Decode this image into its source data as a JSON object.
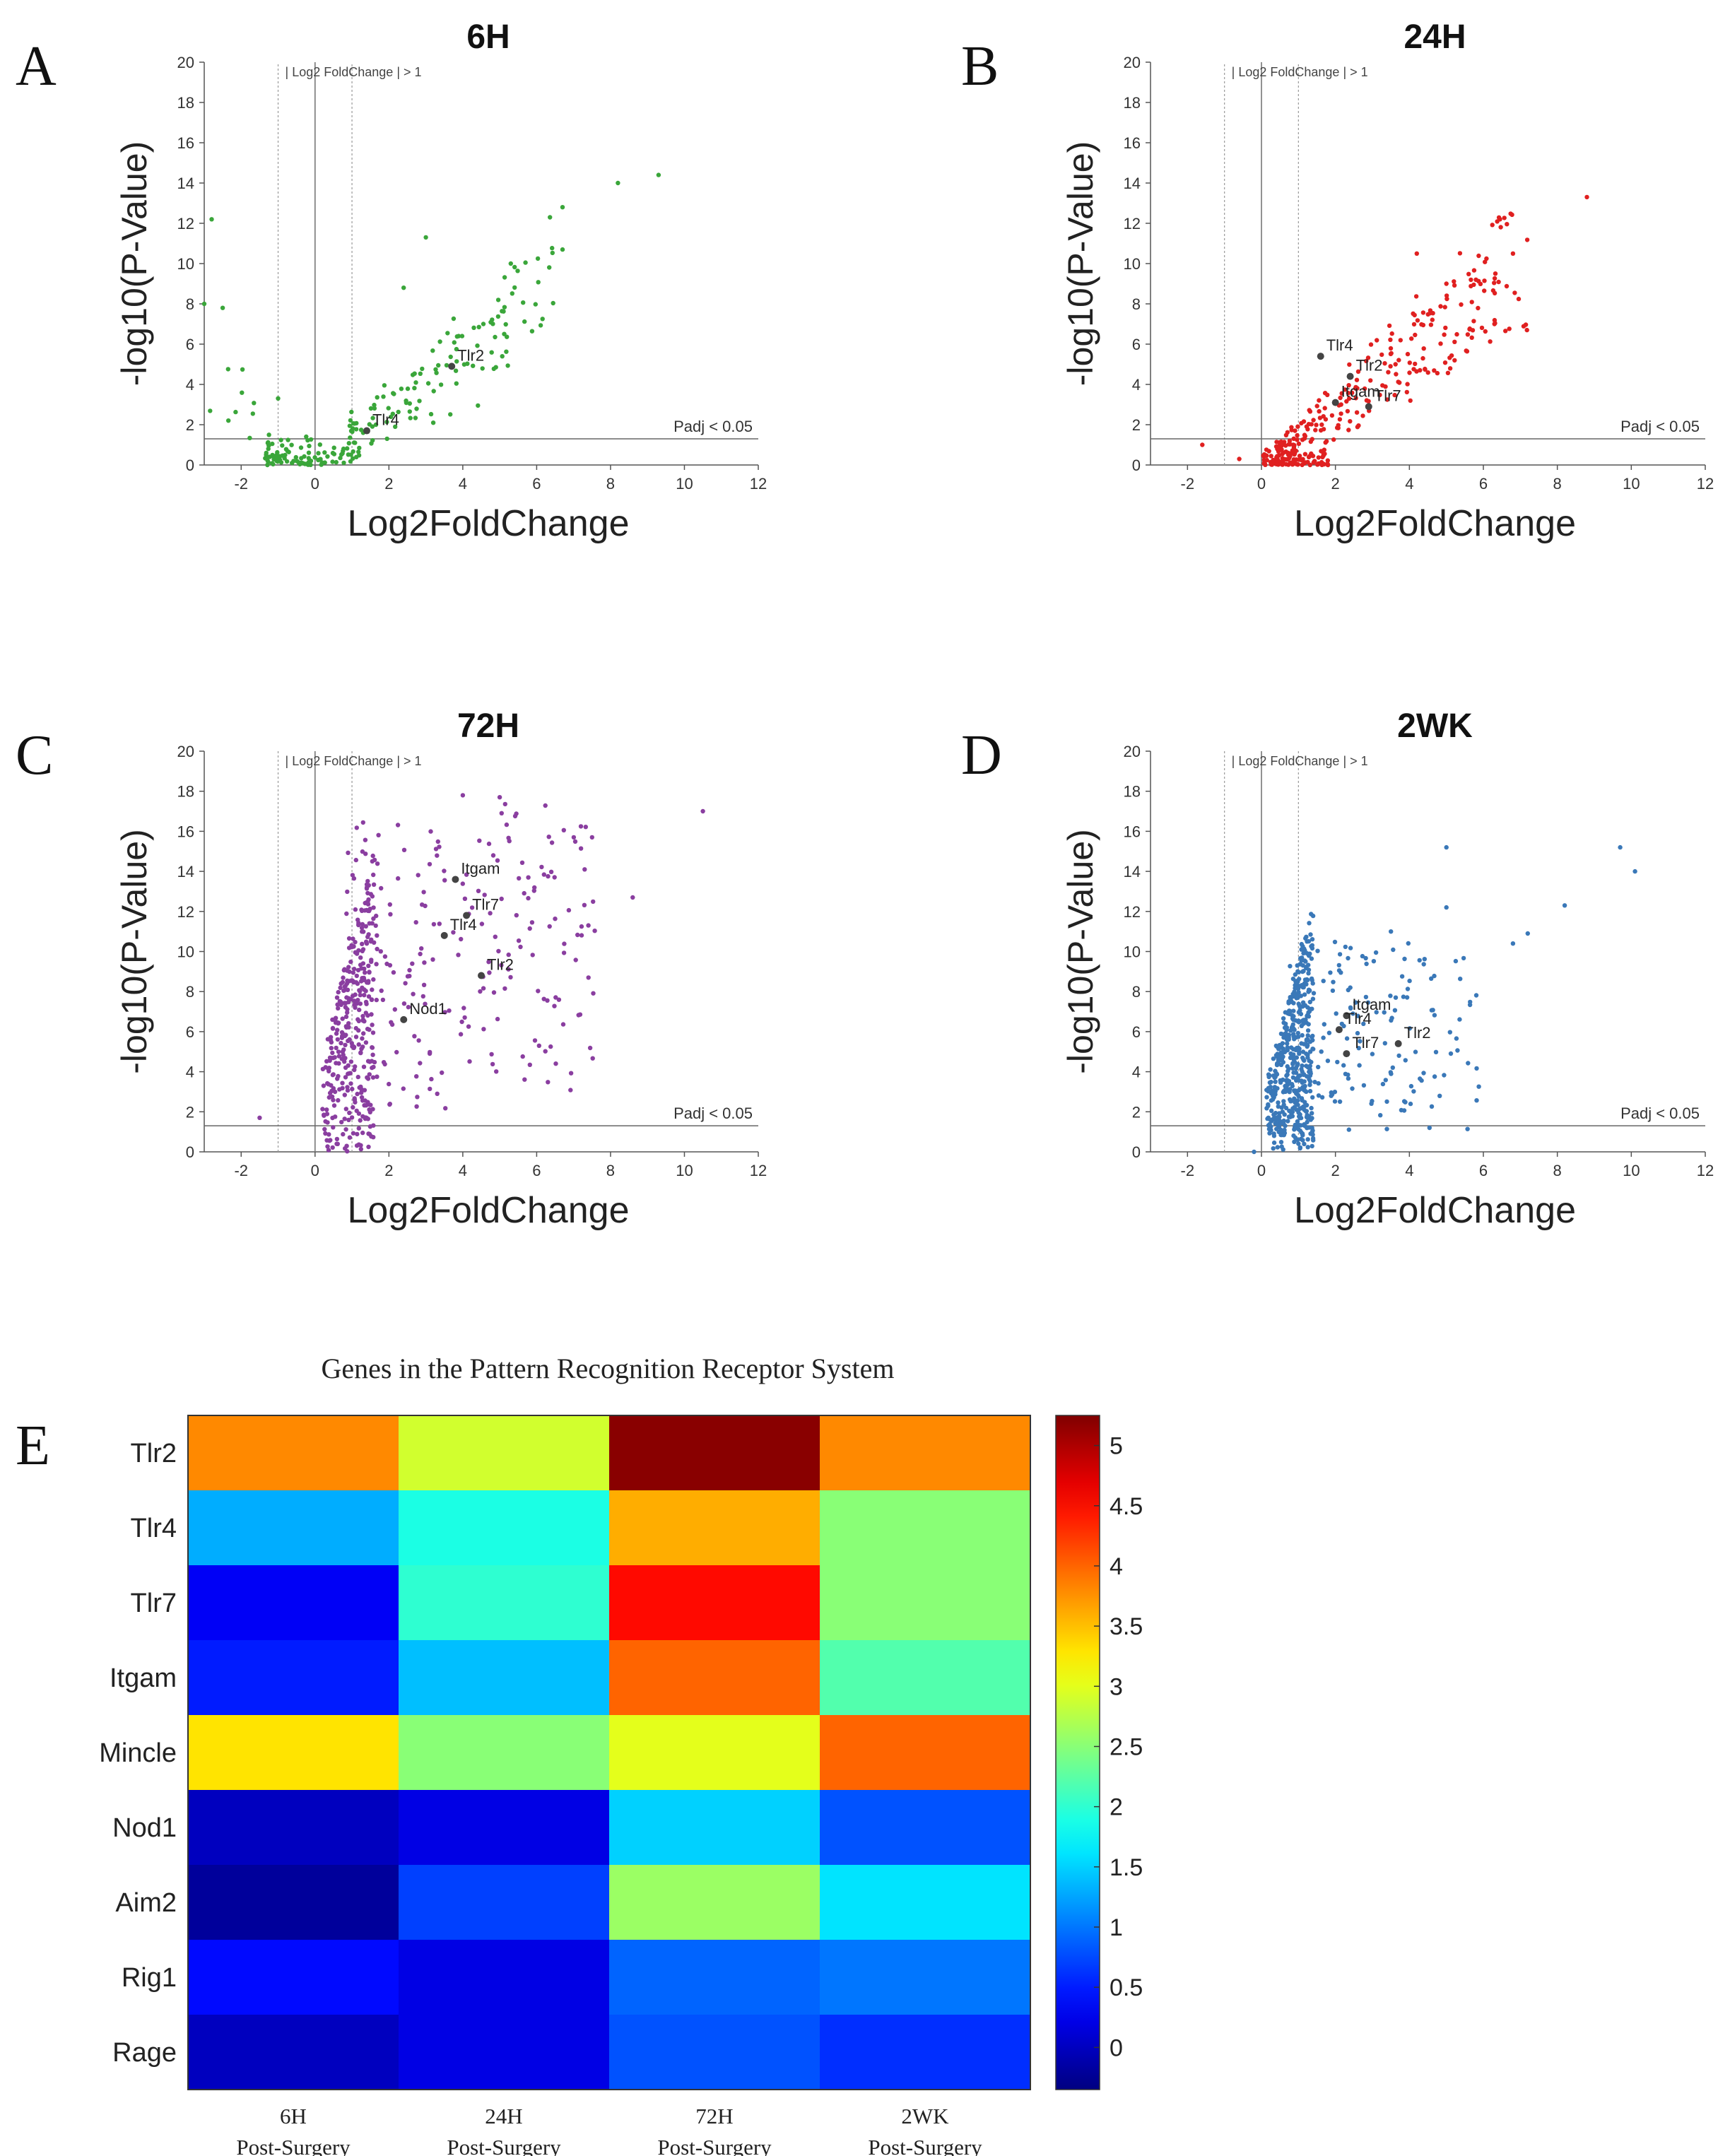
{
  "chart_data": [
    {
      "panel": "A",
      "type": "scatter",
      "title": "6H",
      "xlabel": "Log2FoldChange",
      "ylabel": "-log10(P-Value)",
      "xlim": [
        -3,
        12
      ],
      "ylim": [
        0,
        20
      ],
      "xticks": [
        -2,
        0,
        2,
        4,
        6,
        8,
        10,
        12
      ],
      "yticks": [
        0,
        2,
        4,
        6,
        8,
        10,
        12,
        14,
        16,
        18,
        20
      ],
      "color": "#3aa63a",
      "threshold_label_fc": "| Log2 FoldChange | > 1",
      "threshold_label_p": "Padj < 0.05",
      "padj_line": 1.3,
      "fc_lines": [
        -1,
        1
      ],
      "seed": 11,
      "highlights": [
        {
          "label": "Tlr2",
          "x": 3.7,
          "y": 4.9
        },
        {
          "label": "Tlr4",
          "x": 1.4,
          "y": 1.7
        }
      ],
      "anchors": [
        [
          9.3,
          14.4
        ],
        [
          8.2,
          14.0
        ],
        [
          6.7,
          12.8
        ],
        [
          6.7,
          10.7
        ],
        [
          -2.8,
          12.2
        ],
        [
          -3.0,
          8.0
        ],
        [
          -2.5,
          7.8
        ],
        [
          5.3,
          10.0
        ],
        [
          3.0,
          11.3
        ],
        [
          2.4,
          8.8
        ]
      ]
    },
    {
      "panel": "B",
      "type": "scatter",
      "title": "24H",
      "xlabel": "Log2FoldChange",
      "ylabel": "-log10(P-Value)",
      "xlim": [
        -3,
        12
      ],
      "ylim": [
        0,
        20
      ],
      "xticks": [
        -2,
        0,
        2,
        4,
        6,
        8,
        10,
        12
      ],
      "yticks": [
        0,
        2,
        4,
        6,
        8,
        10,
        12,
        14,
        16,
        18,
        20
      ],
      "color": "#e02020",
      "threshold_label_fc": "| Log2 FoldChange | > 1",
      "threshold_label_p": "Padj < 0.05",
      "padj_line": 1.3,
      "fc_lines": [
        -1,
        1
      ],
      "seed": 23,
      "highlights": [
        {
          "label": "Tlr4",
          "x": 1.6,
          "y": 5.4
        },
        {
          "label": "Tlr2",
          "x": 2.4,
          "y": 4.4
        },
        {
          "label": "Itgam",
          "x": 2.0,
          "y": 3.1
        },
        {
          "label": "Tlr7",
          "x": 2.9,
          "y": 2.9
        }
      ],
      "anchors": [
        [
          8.8,
          13.3
        ],
        [
          6.8,
          10.5
        ],
        [
          4.2,
          10.5
        ],
        [
          5.8,
          9.2
        ],
        [
          -1.6,
          1.0
        ],
        [
          -0.6,
          0.3
        ],
        [
          5.0,
          9.0
        ],
        [
          6.3,
          7.0
        ]
      ]
    },
    {
      "panel": "C",
      "type": "scatter",
      "title": "72H",
      "xlabel": "Log2FoldChange",
      "ylabel": "-log10(P-Value)",
      "xlim": [
        -3,
        12
      ],
      "ylim": [
        0,
        20
      ],
      "xticks": [
        -2,
        0,
        2,
        4,
        6,
        8,
        10,
        12
      ],
      "yticks": [
        0,
        2,
        4,
        6,
        8,
        10,
        12,
        14,
        16,
        18,
        20
      ],
      "color": "#8a3ea0",
      "threshold_label_fc": "| Log2 FoldChange | > 1",
      "threshold_label_p": "Padj < 0.05",
      "padj_line": 1.3,
      "fc_lines": [
        -1,
        1
      ],
      "seed": 37,
      "highlights": [
        {
          "label": "Itgam",
          "x": 3.8,
          "y": 13.6
        },
        {
          "label": "Tlr7",
          "x": 4.1,
          "y": 11.8
        },
        {
          "label": "Tlr4",
          "x": 3.5,
          "y": 10.8
        },
        {
          "label": "Tlr2",
          "x": 4.5,
          "y": 8.8
        },
        {
          "label": "Nod1",
          "x": 2.4,
          "y": 6.6
        }
      ],
      "anchors": [
        [
          10.5,
          17.0
        ],
        [
          7.5,
          15.7
        ],
        [
          7.3,
          14.1
        ],
        [
          8.6,
          12.7
        ],
        [
          7.4,
          11.3
        ],
        [
          -1.5,
          1.7
        ],
        [
          4.0,
          17.8
        ],
        [
          5.0,
          17.7
        ]
      ]
    },
    {
      "panel": "D",
      "type": "scatter",
      "title": "2WK",
      "xlabel": "Log2FoldChange",
      "ylabel": "-log10(P-Value)",
      "xlim": [
        -3,
        12
      ],
      "ylim": [
        0,
        20
      ],
      "xticks": [
        -2,
        0,
        2,
        4,
        6,
        8,
        10,
        12
      ],
      "yticks": [
        0,
        2,
        4,
        6,
        8,
        10,
        12,
        14,
        16,
        18,
        20
      ],
      "color": "#3a78b8",
      "threshold_label_fc": "| Log2 FoldChange | > 1",
      "threshold_label_p": "Padj < 0.05",
      "padj_line": 1.3,
      "fc_lines": [
        -1,
        1
      ],
      "seed": 53,
      "highlights": [
        {
          "label": "Itgam",
          "x": 2.3,
          "y": 6.8
        },
        {
          "label": "Tlr4",
          "x": 2.1,
          "y": 6.1
        },
        {
          "label": "Tlr7",
          "x": 2.3,
          "y": 4.9
        },
        {
          "label": "Tlr2",
          "x": 3.7,
          "y": 5.4
        }
      ],
      "anchors": [
        [
          9.7,
          15.2
        ],
        [
          10.1,
          14.0
        ],
        [
          5.0,
          15.2
        ],
        [
          8.2,
          12.3
        ],
        [
          5.0,
          12.2
        ],
        [
          7.2,
          10.9
        ],
        [
          3.5,
          11.0
        ],
        [
          6.8,
          10.4
        ],
        [
          -0.2,
          0.0
        ]
      ]
    },
    {
      "panel": "E",
      "type": "heatmap",
      "title": "Genes in the Pattern Recognition Receptor System",
      "rows": [
        "Tlr2",
        "Tlr4",
        "Tlr7",
        "Itgam",
        "Mincle",
        "Nod1",
        "Aim2",
        "Rig1",
        "Rage"
      ],
      "columns": [
        {
          "line1": "6H",
          "line2": "Post-Surgery"
        },
        {
          "line1": "24H",
          "line2": "Post-Surgery"
        },
        {
          "line1": "72H",
          "line2": "Post-Surgery"
        },
        {
          "line1": "2WK",
          "line2": "Post-Surgery"
        }
      ],
      "values": [
        [
          3.8,
          2.9,
          5.2,
          3.8
        ],
        [
          1.3,
          1.9,
          3.6,
          2.5
        ],
        [
          0.3,
          2.0,
          4.5,
          2.5
        ],
        [
          0.5,
          1.4,
          4.0,
          2.2
        ],
        [
          3.3,
          2.5,
          3.0,
          4.0
        ],
        [
          0.0,
          0.2,
          1.5,
          0.8
        ],
        [
          -0.2,
          0.7,
          2.6,
          1.6
        ],
        [
          0.4,
          0.2,
          0.9,
          1.0
        ],
        [
          0.0,
          0.2,
          0.8,
          0.6
        ]
      ],
      "colorbar_ticks": [
        "5",
        "4.5",
        "4",
        "3.5",
        "3",
        "2.5",
        "2",
        "1.5",
        "1",
        "0.5",
        "0"
      ],
      "colorbar_range": [
        -0.35,
        5.25
      ]
    }
  ],
  "panel_letters": [
    "A",
    "B",
    "C",
    "D",
    "E"
  ]
}
